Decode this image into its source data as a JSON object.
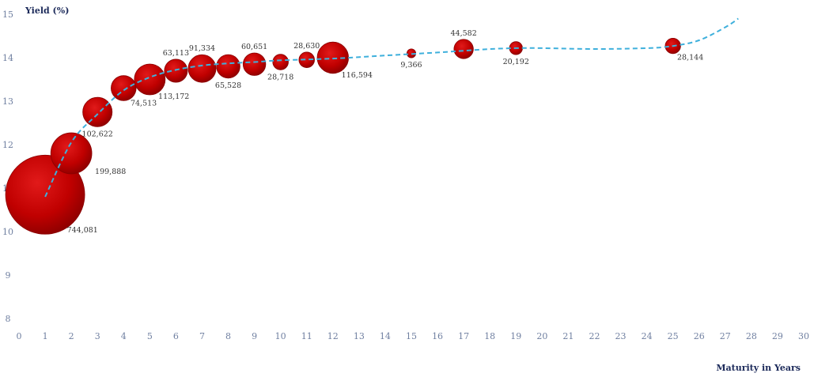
{
  "chart_data": {
    "type": "scatter",
    "subtype": "bubble-with-fitted-curve",
    "title": "",
    "ylabel": "Yield (%)",
    "xlabel": "Maturity in Years",
    "xlim": [
      0,
      30
    ],
    "ylim": [
      8,
      15
    ],
    "x_ticks": [
      0,
      1,
      2,
      3,
      4,
      5,
      6,
      7,
      8,
      9,
      10,
      11,
      12,
      13,
      14,
      15,
      16,
      17,
      18,
      19,
      20,
      21,
      22,
      23,
      24,
      25,
      26,
      27,
      28,
      29,
      30
    ],
    "y_ticks": [
      8,
      9,
      10,
      11,
      12,
      13,
      14,
      15
    ],
    "grid": false,
    "legend": "none",
    "colors": {
      "bubble": "#c00000",
      "curve": "#3fb0dc"
    },
    "points": [
      {
        "x": 1,
        "y": 10.85,
        "label": "744,081",
        "label_pos": "below-right"
      },
      {
        "x": 2,
        "y": 11.8,
        "label": "199,888",
        "label_pos": "right"
      },
      {
        "x": 3,
        "y": 12.75,
        "label": "102,622",
        "label_pos": "below"
      },
      {
        "x": 4,
        "y": 13.3,
        "label": "74,513",
        "label_pos": "below-right"
      },
      {
        "x": 5,
        "y": 13.5,
        "label": "113,172",
        "label_pos": "below-right"
      },
      {
        "x": 6,
        "y": 13.7,
        "label": "63,113",
        "label_pos": "above"
      },
      {
        "x": 7,
        "y": 13.75,
        "label": "91,334",
        "label_pos": "above"
      },
      {
        "x": 8,
        "y": 13.8,
        "label": "65,528",
        "label_pos": "below"
      },
      {
        "x": 9,
        "y": 13.85,
        "label": "60,651",
        "label_pos": "above"
      },
      {
        "x": 10,
        "y": 13.9,
        "label": "28,718",
        "label_pos": "below"
      },
      {
        "x": 11,
        "y": 13.95,
        "label": "28,630",
        "label_pos": "above"
      },
      {
        "x": 12,
        "y": 14.0,
        "label": "116,594",
        "label_pos": "below-right"
      },
      {
        "x": 15,
        "y": 14.1,
        "label": "9,366",
        "label_pos": "below"
      },
      {
        "x": 17,
        "y": 14.2,
        "label": "44,582",
        "label_pos": "above"
      },
      {
        "x": 19,
        "y": 14.22,
        "label": "20,192",
        "label_pos": "below"
      },
      {
        "x": 25,
        "y": 14.27,
        "label": "28,144",
        "label_pos": "below-right"
      }
    ],
    "fitted_curve": [
      [
        1,
        10.8
      ],
      [
        2,
        12.05
      ],
      [
        3,
        12.7
      ],
      [
        4,
        13.25
      ],
      [
        5,
        13.55
      ],
      [
        6,
        13.72
      ],
      [
        7,
        13.82
      ],
      [
        8,
        13.87
      ],
      [
        9,
        13.9
      ],
      [
        10,
        13.94
      ],
      [
        12,
        13.98
      ],
      [
        14,
        14.05
      ],
      [
        16,
        14.12
      ],
      [
        17,
        14.16
      ],
      [
        18,
        14.2
      ],
      [
        19,
        14.22
      ],
      [
        20,
        14.22
      ],
      [
        22,
        14.2
      ],
      [
        24,
        14.22
      ],
      [
        25,
        14.27
      ],
      [
        26,
        14.4
      ],
      [
        27,
        14.7
      ],
      [
        27.5,
        14.9
      ]
    ]
  }
}
